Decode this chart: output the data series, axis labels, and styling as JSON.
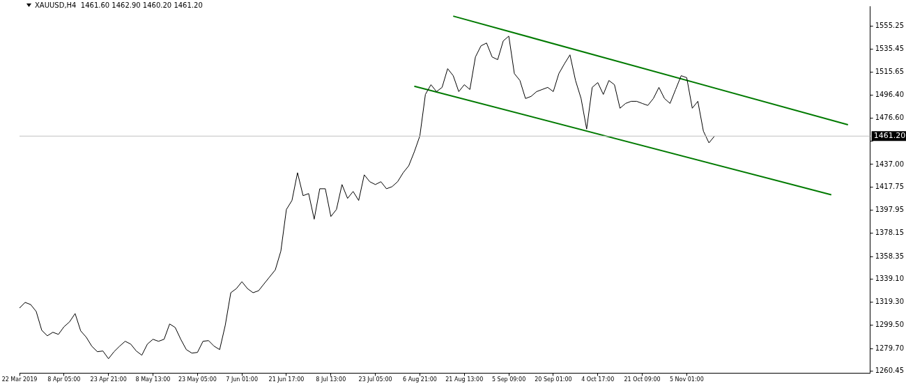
{
  "chart_data": {
    "type": "line",
    "title": "XAUUSD,H4  1461.60 1462.90 1460.20 1461.20",
    "categories": [
      "22 Mar 2019",
      null,
      null,
      null,
      null,
      null,
      null,
      null,
      "8 Apr 05:00",
      null,
      null,
      null,
      null,
      null,
      null,
      null,
      "23 Apr 21:00",
      null,
      null,
      null,
      null,
      null,
      null,
      null,
      "8 May 13:00",
      null,
      null,
      null,
      null,
      null,
      null,
      null,
      "23 May 05:00",
      null,
      null,
      null,
      null,
      null,
      null,
      null,
      "7 Jun 01:00",
      null,
      null,
      null,
      null,
      null,
      null,
      null,
      "21 Jun 17:00",
      null,
      null,
      null,
      null,
      null,
      null,
      null,
      "8 Jul 13:00",
      null,
      null,
      null,
      null,
      null,
      null,
      null,
      "23 Jul 05:00",
      null,
      null,
      null,
      null,
      null,
      null,
      null,
      "6 Aug 21:00",
      null,
      null,
      null,
      null,
      null,
      null,
      null,
      "21 Aug 13:00",
      null,
      null,
      null,
      null,
      null,
      null,
      null,
      "5 Sep 09:00",
      null,
      null,
      null,
      null,
      null,
      null,
      null,
      "20 Sep 01:00",
      null,
      null,
      null,
      null,
      null,
      null,
      null,
      "4 Oct 17:00",
      null,
      null,
      null,
      null,
      null,
      null,
      null,
      "21 Oct 09:00",
      null,
      null,
      null,
      null,
      null,
      null,
      null,
      "5 Nov 01:00",
      null,
      null,
      null,
      null,
      null,
      null,
      null,
      null,
      null,
      null,
      null,
      null,
      null,
      null,
      null,
      null,
      null,
      null,
      null,
      null,
      null,
      null,
      null,
      null,
      null,
      null,
      null,
      null,
      null,
      null,
      null,
      null,
      null
    ],
    "series": [
      {
        "color": "#000000",
        "values": [
          1314.3,
          1319.1,
          1317.3,
          1311.4,
          1295.3,
          1290.6,
          1293.6,
          1291.8,
          1298.3,
          1302.5,
          1309.6,
          1294.8,
          1289.4,
          1281.7,
          1277.0,
          1277.6,
          1271.0,
          1277.0,
          1281.7,
          1285.9,
          1283.5,
          1277.6,
          1274.0,
          1283.5,
          1287.6,
          1285.9,
          1287.6,
          1300.7,
          1297.7,
          1287.6,
          1278.8,
          1275.8,
          1276.4,
          1285.9,
          1286.5,
          1281.7,
          1278.8,
          1299.5,
          1327.4,
          1330.9,
          1336.8,
          1330.9,
          1327.4,
          1329.1,
          1335.1,
          1341.0,
          1346.9,
          1362.9,
          1398.5,
          1406.2,
          1429.9,
          1410.3,
          1412.1,
          1390.2,
          1416.2,
          1416.2,
          1392.5,
          1398.5,
          1419.8,
          1408.0,
          1413.9,
          1406.2,
          1428.1,
          1422.2,
          1419.8,
          1422.2,
          1416.2,
          1418.0,
          1422.2,
          1429.9,
          1435.8,
          1447.7,
          1461.3,
          1496.8,
          1505.1,
          1499.2,
          1502.8,
          1518.8,
          1512.8,
          1499.2,
          1505.1,
          1501.0,
          1528.8,
          1538.3,
          1540.7,
          1528.8,
          1526.5,
          1542.5,
          1546.6,
          1514.6,
          1508.7,
          1493.3,
          1495.1,
          1499.2,
          1501.0,
          1502.8,
          1499.2,
          1514.6,
          1522.9,
          1530.6,
          1508.7,
          1493.3,
          1467.2,
          1502.8,
          1506.9,
          1496.8,
          1508.7,
          1505.1,
          1485.0,
          1489.1,
          1490.9,
          1490.9,
          1489.1,
          1487.4,
          1493.3,
          1502.8,
          1493.3,
          1489.1,
          1501.0,
          1512.8,
          1511.1,
          1485.0,
          1490.9,
          1465.4,
          1455.4,
          1461.2,
          null,
          null,
          null,
          null,
          null,
          null,
          null,
          null,
          null,
          null,
          null,
          null,
          null,
          null,
          null,
          null,
          null,
          null,
          null,
          null,
          null,
          null,
          null,
          null,
          null,
          null,
          null,
          null
        ]
      },
      {
        "type": "line",
        "color": "#007a00",
        "values": [
          null,
          null,
          null,
          null,
          null,
          null,
          null,
          null,
          null,
          null,
          null,
          null,
          null,
          null,
          null,
          null,
          null,
          null,
          null,
          null,
          null,
          null,
          null,
          null,
          null,
          null,
          null,
          null,
          null,
          null,
          null,
          null,
          null,
          null,
          null,
          null,
          null,
          null,
          null,
          null,
          null,
          null,
          null,
          null,
          null,
          null,
          null,
          null,
          null,
          null,
          null,
          null,
          null,
          null,
          null,
          null,
          null,
          null,
          null,
          null,
          null,
          null,
          null,
          null,
          null,
          null,
          null,
          null,
          null,
          null,
          null,
          null,
          null,
          null,
          null,
          null,
          null,
          null,
          1563.7,
          null,
          null,
          null,
          null,
          null,
          null,
          null,
          null,
          null,
          null,
          null,
          null,
          null,
          null,
          null,
          null,
          null,
          null,
          null,
          null,
          null,
          null,
          null,
          null,
          null,
          null,
          null,
          null,
          null,
          null,
          null,
          null,
          null,
          null,
          null,
          null,
          null,
          null,
          null,
          null,
          null,
          null,
          null,
          null,
          null,
          null,
          null,
          null,
          null,
          null,
          null,
          null,
          null,
          null,
          null,
          null,
          null,
          null,
          null,
          null,
          null,
          null,
          null,
          null,
          null,
          null,
          null,
          null,
          null,
          null,
          1470.9,
          null,
          null,
          null,
          null
        ]
      },
      {
        "type": "line",
        "color": "#007a00",
        "values": [
          null,
          null,
          null,
          null,
          null,
          null,
          null,
          null,
          null,
          null,
          null,
          null,
          null,
          null,
          null,
          null,
          null,
          null,
          null,
          null,
          null,
          null,
          null,
          null,
          null,
          null,
          null,
          null,
          null,
          null,
          null,
          null,
          null,
          null,
          null,
          null,
          null,
          null,
          null,
          null,
          null,
          null,
          null,
          null,
          null,
          null,
          null,
          null,
          null,
          null,
          null,
          null,
          null,
          null,
          null,
          null,
          null,
          null,
          null,
          null,
          null,
          null,
          null,
          null,
          null,
          null,
          null,
          null,
          null,
          null,
          null,
          1503.8,
          null,
          null,
          null,
          null,
          null,
          null,
          null,
          null,
          null,
          null,
          null,
          null,
          null,
          null,
          null,
          null,
          null,
          null,
          null,
          null,
          null,
          null,
          null,
          null,
          null,
          null,
          null,
          null,
          null,
          null,
          null,
          null,
          null,
          null,
          null,
          null,
          null,
          null,
          null,
          null,
          null,
          null,
          null,
          null,
          null,
          null,
          null,
          null,
          null,
          null,
          null,
          null,
          null,
          null,
          null,
          null,
          null,
          null,
          null,
          null,
          null,
          null,
          null,
          null,
          null,
          null,
          null,
          null,
          null,
          null,
          null,
          null,
          null,
          null,
          1411.1,
          null,
          null,
          null,
          null,
          null,
          null,
          null
        ]
      }
    ],
    "ylim": [
      1258.7,
      1572.1
    ],
    "yticks": [
      1555.25,
      1535.45,
      1515.65,
      {
        "value": 1496.4,
        "label": "1496.40"
      },
      {
        "value": 1476.6,
        "label": "1476.60"
      },
      {
        "value": 1456.8,
        "label": null
      },
      {
        "value": 1437,
        "label": "1437.00"
      },
      1417.75,
      1397.95,
      1378.15,
      1358.35,
      {
        "value": 1339.1,
        "label": "1339.10"
      },
      {
        "value": 1319.3,
        "label": "1319.30"
      },
      {
        "value": 1299.5,
        "label": "1299.50"
      },
      {
        "value": 1279.7,
        "label": "1279.70"
      },
      1260.45
    ],
    "ref_lines": [
      {
        "axis": "y",
        "value": 1461.2,
        "label": "1461.20",
        "color": "#c0c0c0"
      }
    ],
    "marker": "none"
  }
}
